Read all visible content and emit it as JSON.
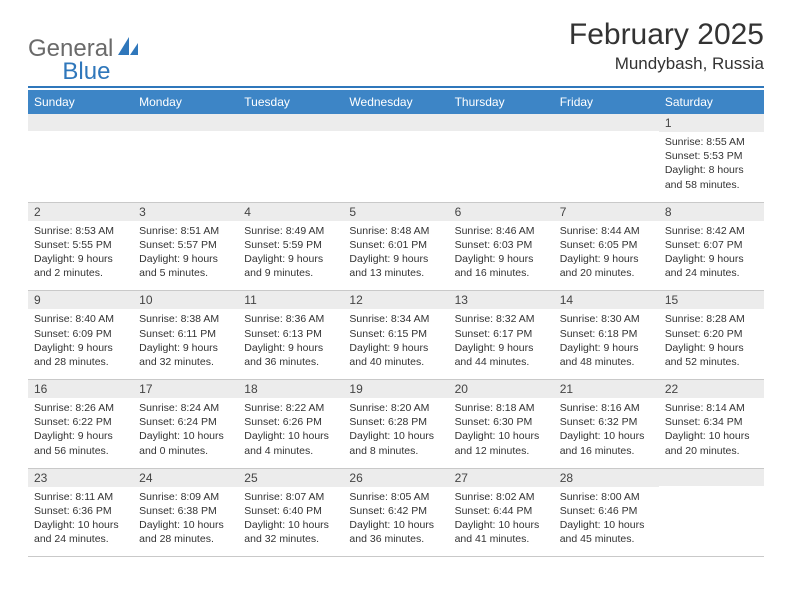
{
  "logo": {
    "part1": "General",
    "part2": "Blue"
  },
  "title": "February 2025",
  "location": "Mundybash, Russia",
  "colors": {
    "accent": "#3d85c6",
    "divider": "#2f77bb",
    "dayStripe": "#ececec",
    "rowBorder": "#c9c9c9",
    "logoGray": "#6a6a6a",
    "logoBlue": "#2f77bb"
  },
  "weekdays": [
    "Sunday",
    "Monday",
    "Tuesday",
    "Wednesday",
    "Thursday",
    "Friday",
    "Saturday"
  ],
  "weeks": [
    [
      {
        "blank": true
      },
      {
        "blank": true
      },
      {
        "blank": true
      },
      {
        "blank": true
      },
      {
        "blank": true
      },
      {
        "blank": true
      },
      {
        "n": "1",
        "sr": "Sunrise: 8:55 AM",
        "ss": "Sunset: 5:53 PM",
        "d1": "Daylight: 8 hours",
        "d2": "and 58 minutes."
      }
    ],
    [
      {
        "n": "2",
        "sr": "Sunrise: 8:53 AM",
        "ss": "Sunset: 5:55 PM",
        "d1": "Daylight: 9 hours",
        "d2": "and 2 minutes."
      },
      {
        "n": "3",
        "sr": "Sunrise: 8:51 AM",
        "ss": "Sunset: 5:57 PM",
        "d1": "Daylight: 9 hours",
        "d2": "and 5 minutes."
      },
      {
        "n": "4",
        "sr": "Sunrise: 8:49 AM",
        "ss": "Sunset: 5:59 PM",
        "d1": "Daylight: 9 hours",
        "d2": "and 9 minutes."
      },
      {
        "n": "5",
        "sr": "Sunrise: 8:48 AM",
        "ss": "Sunset: 6:01 PM",
        "d1": "Daylight: 9 hours",
        "d2": "and 13 minutes."
      },
      {
        "n": "6",
        "sr": "Sunrise: 8:46 AM",
        "ss": "Sunset: 6:03 PM",
        "d1": "Daylight: 9 hours",
        "d2": "and 16 minutes."
      },
      {
        "n": "7",
        "sr": "Sunrise: 8:44 AM",
        "ss": "Sunset: 6:05 PM",
        "d1": "Daylight: 9 hours",
        "d2": "and 20 minutes."
      },
      {
        "n": "8",
        "sr": "Sunrise: 8:42 AM",
        "ss": "Sunset: 6:07 PM",
        "d1": "Daylight: 9 hours",
        "d2": "and 24 minutes."
      }
    ],
    [
      {
        "n": "9",
        "sr": "Sunrise: 8:40 AM",
        "ss": "Sunset: 6:09 PM",
        "d1": "Daylight: 9 hours",
        "d2": "and 28 minutes."
      },
      {
        "n": "10",
        "sr": "Sunrise: 8:38 AM",
        "ss": "Sunset: 6:11 PM",
        "d1": "Daylight: 9 hours",
        "d2": "and 32 minutes."
      },
      {
        "n": "11",
        "sr": "Sunrise: 8:36 AM",
        "ss": "Sunset: 6:13 PM",
        "d1": "Daylight: 9 hours",
        "d2": "and 36 minutes."
      },
      {
        "n": "12",
        "sr": "Sunrise: 8:34 AM",
        "ss": "Sunset: 6:15 PM",
        "d1": "Daylight: 9 hours",
        "d2": "and 40 minutes."
      },
      {
        "n": "13",
        "sr": "Sunrise: 8:32 AM",
        "ss": "Sunset: 6:17 PM",
        "d1": "Daylight: 9 hours",
        "d2": "and 44 minutes."
      },
      {
        "n": "14",
        "sr": "Sunrise: 8:30 AM",
        "ss": "Sunset: 6:18 PM",
        "d1": "Daylight: 9 hours",
        "d2": "and 48 minutes."
      },
      {
        "n": "15",
        "sr": "Sunrise: 8:28 AM",
        "ss": "Sunset: 6:20 PM",
        "d1": "Daylight: 9 hours",
        "d2": "and 52 minutes."
      }
    ],
    [
      {
        "n": "16",
        "sr": "Sunrise: 8:26 AM",
        "ss": "Sunset: 6:22 PM",
        "d1": "Daylight: 9 hours",
        "d2": "and 56 minutes."
      },
      {
        "n": "17",
        "sr": "Sunrise: 8:24 AM",
        "ss": "Sunset: 6:24 PM",
        "d1": "Daylight: 10 hours",
        "d2": "and 0 minutes."
      },
      {
        "n": "18",
        "sr": "Sunrise: 8:22 AM",
        "ss": "Sunset: 6:26 PM",
        "d1": "Daylight: 10 hours",
        "d2": "and 4 minutes."
      },
      {
        "n": "19",
        "sr": "Sunrise: 8:20 AM",
        "ss": "Sunset: 6:28 PM",
        "d1": "Daylight: 10 hours",
        "d2": "and 8 minutes."
      },
      {
        "n": "20",
        "sr": "Sunrise: 8:18 AM",
        "ss": "Sunset: 6:30 PM",
        "d1": "Daylight: 10 hours",
        "d2": "and 12 minutes."
      },
      {
        "n": "21",
        "sr": "Sunrise: 8:16 AM",
        "ss": "Sunset: 6:32 PM",
        "d1": "Daylight: 10 hours",
        "d2": "and 16 minutes."
      },
      {
        "n": "22",
        "sr": "Sunrise: 8:14 AM",
        "ss": "Sunset: 6:34 PM",
        "d1": "Daylight: 10 hours",
        "d2": "and 20 minutes."
      }
    ],
    [
      {
        "n": "23",
        "sr": "Sunrise: 8:11 AM",
        "ss": "Sunset: 6:36 PM",
        "d1": "Daylight: 10 hours",
        "d2": "and 24 minutes."
      },
      {
        "n": "24",
        "sr": "Sunrise: 8:09 AM",
        "ss": "Sunset: 6:38 PM",
        "d1": "Daylight: 10 hours",
        "d2": "and 28 minutes."
      },
      {
        "n": "25",
        "sr": "Sunrise: 8:07 AM",
        "ss": "Sunset: 6:40 PM",
        "d1": "Daylight: 10 hours",
        "d2": "and 32 minutes."
      },
      {
        "n": "26",
        "sr": "Sunrise: 8:05 AM",
        "ss": "Sunset: 6:42 PM",
        "d1": "Daylight: 10 hours",
        "d2": "and 36 minutes."
      },
      {
        "n": "27",
        "sr": "Sunrise: 8:02 AM",
        "ss": "Sunset: 6:44 PM",
        "d1": "Daylight: 10 hours",
        "d2": "and 41 minutes."
      },
      {
        "n": "28",
        "sr": "Sunrise: 8:00 AM",
        "ss": "Sunset: 6:46 PM",
        "d1": "Daylight: 10 hours",
        "d2": "and 45 minutes."
      },
      {
        "blank": true
      }
    ]
  ]
}
